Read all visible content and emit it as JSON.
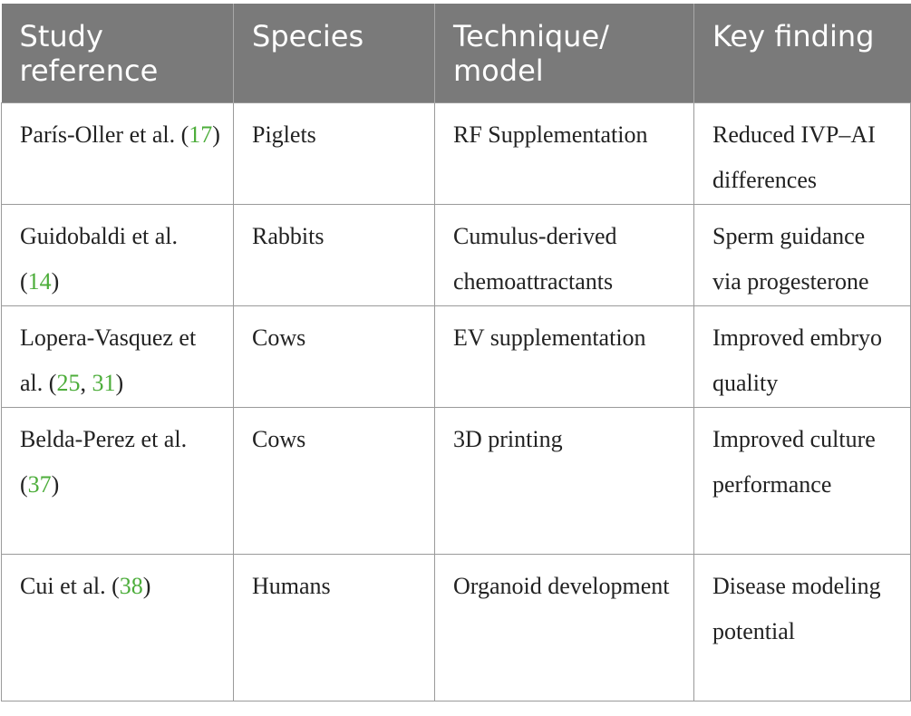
{
  "headers": {
    "study": "Study reference",
    "species": "Species",
    "technique": "Technique/ model",
    "finding": "Key finding"
  },
  "rows": [
    {
      "authors": "París-Oller et al.",
      "refs": [
        "17"
      ],
      "species": "Piglets",
      "technique": "RF Supplementation",
      "finding": "Reduced IVP–AI differences"
    },
    {
      "authors": "Guidobaldi et al.",
      "refs": [
        "14"
      ],
      "species": "Rabbits",
      "technique": "Cumulus-derived chemoattractants",
      "finding": "Sperm guidance via progesterone"
    },
    {
      "authors": "Lopera-Vasquez et al.",
      "refs": [
        "25",
        "31"
      ],
      "species": "Cows",
      "technique": "EV supplementation",
      "finding": "Improved embryo quality"
    },
    {
      "authors": "Belda-Perez et al.",
      "refs": [
        "37"
      ],
      "species": "Cows",
      "technique": "3D printing",
      "finding": "Improved culture performance"
    },
    {
      "authors": "Cui et al.",
      "refs": [
        "38"
      ],
      "species": "Humans",
      "technique": "Organoid development",
      "finding": "Disease modeling potential"
    }
  ],
  "colors": {
    "header_bg": "#7a7a7a",
    "header_text": "#ffffff",
    "citation_link": "#4cad3a",
    "grid": "#9a9a9a"
  }
}
